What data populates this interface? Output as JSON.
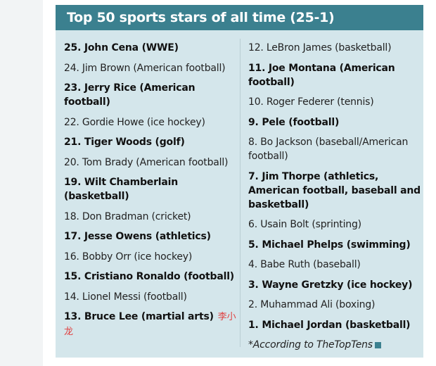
{
  "title": "Top 50 sports stars of all time (25-1)",
  "left_items": [
    {
      "text": "25. John Cena (WWE)",
      "bold": true
    },
    {
      "text": "24. Jim Brown (American football)",
      "bold": false
    },
    {
      "text": "23. Jerry Rice (American football)",
      "bold": true
    },
    {
      "text": "22. Gordie Howe (ice hockey)",
      "bold": false
    },
    {
      "text": "21. Tiger Woods (golf)",
      "bold": true
    },
    {
      "text": "20. Tom Brady (American football)",
      "bold": false
    },
    {
      "text": "19. Wilt Chamberlain (basketball)",
      "bold": true
    },
    {
      "text": "18. Don Bradman (cricket)",
      "bold": false
    },
    {
      "text": "17. Jesse Owens (athletics)",
      "bold": true
    },
    {
      "text": "16. Bobby Orr (ice hockey)",
      "bold": false
    },
    {
      "text": "15. Cristiano Ronaldo (football)",
      "bold": true
    },
    {
      "text": "14. Lionel Messi (football)",
      "bold": false
    },
    {
      "text": "13. Bruce Lee (martial arts)",
      "bold": true,
      "annotation": "李小龙"
    }
  ],
  "right_items": [
    {
      "text": "12. LeBron James (basketball)",
      "bold": false
    },
    {
      "text": "11. Joe Montana (American football)",
      "bold": true
    },
    {
      "text": "10. Roger Federer (tennis)",
      "bold": false
    },
    {
      "text": "9. Pele (football)",
      "bold": true
    },
    {
      "text": "8. Bo Jackson (baseball/American football)",
      "bold": false
    },
    {
      "text": "7. Jim Thorpe (athletics, American football, baseball and basketball)",
      "bold": true
    },
    {
      "text": "6. Usain Bolt (sprinting)",
      "bold": false
    },
    {
      "text": "5. Michael Phelps (swimming)",
      "bold": true
    },
    {
      "text": "4. Babe Ruth (baseball)",
      "bold": false
    },
    {
      "text": "3. Wayne Gretzky (ice hockey)",
      "bold": true
    },
    {
      "text": "2. Muhammad Ali (boxing)",
      "bold": false
    },
    {
      "text": "1. Michael Jordan (basketball)",
      "bold": true
    }
  ],
  "footnote": "*According to TheTopTens",
  "colors": {
    "header": "#3b808f",
    "body": "#d4e6eb",
    "annotation": "#e04040"
  }
}
